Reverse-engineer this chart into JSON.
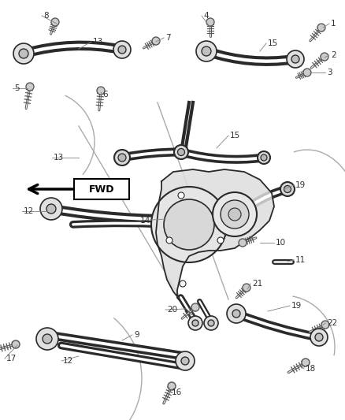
{
  "background_color": "#ffffff",
  "line_color": "#2a2a2a",
  "gray_color": "#888888",
  "label_color": "#555555",
  "figsize": [
    4.38,
    5.33
  ],
  "dpi": 100
}
